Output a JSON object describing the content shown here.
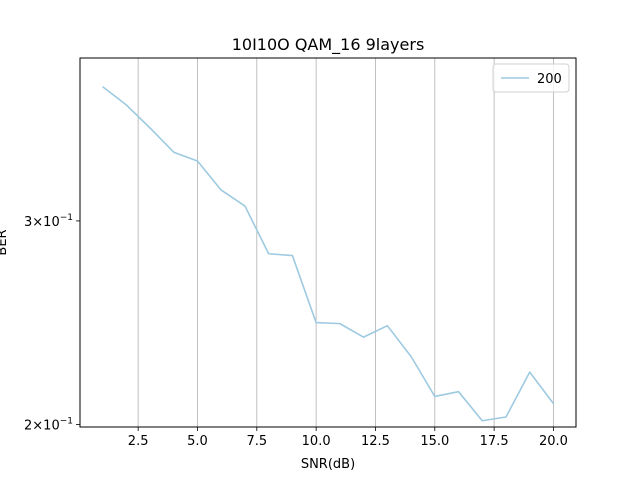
{
  "chart_data": {
    "type": "line",
    "title": "10I10O QAM_16 9layers",
    "xlabel": "SNR(dB)",
    "ylabel": "BER",
    "yscale": "log",
    "xlim": [
      0.05,
      20.95
    ],
    "ylim": [
      0.199,
      0.415
    ],
    "grid": "x",
    "legend_position": "top-right",
    "x_ticks": [
      2.5,
      5.0,
      7.5,
      10.0,
      12.5,
      15.0,
      17.5,
      20.0
    ],
    "x_tick_labels": [
      "2.5",
      "5.0",
      "7.5",
      "10.0",
      "12.5",
      "15.0",
      "17.5",
      "20.0"
    ],
    "y_ticks": [
      0.2,
      0.3
    ],
    "y_tick_labels": [
      {
        "mantissa": "2",
        "times": "×",
        "base": "10",
        "exp": "−1"
      },
      {
        "mantissa": "3",
        "times": "×",
        "base": "10",
        "exp": "−1"
      }
    ],
    "series": [
      {
        "name": "200",
        "color": "#9ecae1",
        "x": [
          1,
          2,
          3,
          4,
          5,
          6,
          7,
          8,
          9,
          10,
          11,
          12,
          13,
          14,
          15,
          16,
          17,
          18,
          19,
          20
        ],
        "y": [
          0.392,
          0.378,
          0.361,
          0.344,
          0.338,
          0.319,
          0.309,
          0.281,
          0.28,
          0.245,
          0.2445,
          0.238,
          0.2435,
          0.229,
          0.2115,
          0.2135,
          0.2015,
          0.203,
          0.222,
          0.2085
        ]
      }
    ]
  }
}
